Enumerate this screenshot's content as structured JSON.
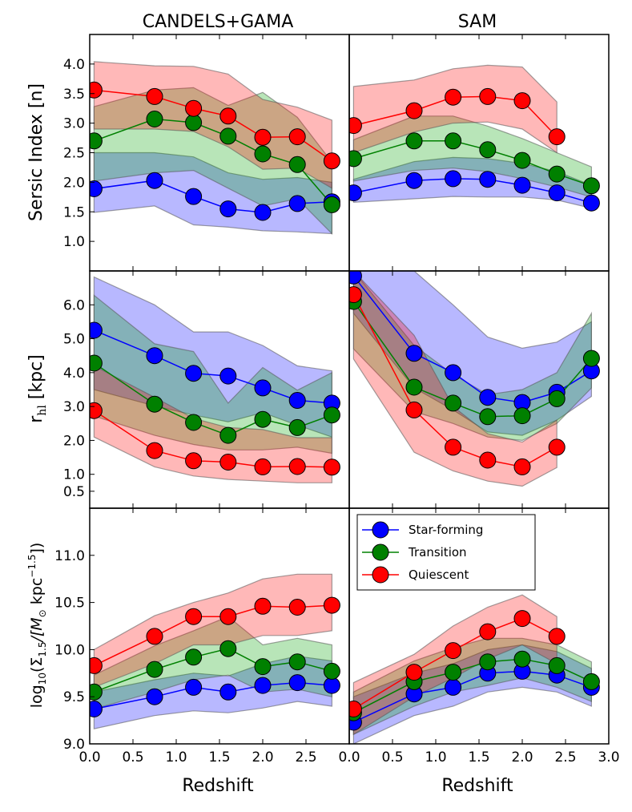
{
  "columns": [
    "CANDELS+GAMA",
    "SAM"
  ],
  "xlabel": "Redshift",
  "ylabels": {
    "sersic": "Sersic Index [n]",
    "rhl_main": "r",
    "rhl_sub": "hl",
    "rhl_unit": " [kpc]",
    "sigma_pre": "log",
    "sigma_sub": "10",
    "sigma_mid": "(Σ",
    "sigma_sub2": "1.5",
    "sigma_mid2": "/[M",
    "sigma_sub3": "⊙",
    "sigma_mid3": " kpc",
    "sigma_sup": "−1.5",
    "sigma_end": "])"
  },
  "legend": {
    "sf": "Star-forming",
    "tr": "Transition",
    "q": "Quiescent"
  },
  "colors": {
    "sf": "#0000ff",
    "tr": "#008000",
    "q": "#ff0000",
    "sf_fill": "#0000ff",
    "tr_fill": "#00a000",
    "q_fill": "#ff0000"
  },
  "chart_data": [
    {
      "type": "line",
      "row": "sersic",
      "column": "CANDELS+GAMA",
      "xlim": [
        0,
        3.0
      ],
      "ylim": [
        0.5,
        4.5
      ],
      "yticks": [
        "1.0",
        "1.5",
        "2.0",
        "2.5",
        "3.0",
        "3.5",
        "4.0"
      ],
      "series": [
        {
          "name": "Star-forming",
          "key": "sf",
          "x": [
            0.05,
            0.75,
            1.2,
            1.6,
            2.0,
            2.4,
            2.8
          ],
          "y": [
            1.89,
            2.03,
            1.76,
            1.55,
            1.49,
            1.64,
            1.67
          ],
          "lo": [
            1.49,
            1.6,
            1.28,
            1.24,
            1.18,
            1.16,
            1.13
          ],
          "hi": [
            2.5,
            2.5,
            2.43,
            2.16,
            2.05,
            2.08,
            2.0
          ]
        },
        {
          "name": "Transition",
          "key": "tr",
          "x": [
            0.05,
            0.75,
            1.2,
            1.6,
            2.0,
            2.4,
            2.8
          ],
          "y": [
            2.7,
            3.07,
            3.01,
            2.78,
            2.48,
            2.3,
            1.62
          ],
          "lo": [
            2.02,
            2.16,
            2.2,
            1.9,
            1.6,
            1.72,
            1.13
          ],
          "hi": [
            3.28,
            3.56,
            3.6,
            3.3,
            3.52,
            3.1,
            2.34
          ]
        },
        {
          "name": "Quiescent",
          "key": "q",
          "x": [
            0.05,
            0.75,
            1.2,
            1.6,
            2.0,
            2.4,
            2.8
          ],
          "y": [
            3.56,
            3.45,
            3.25,
            3.12,
            2.76,
            2.77,
            2.36
          ],
          "lo": [
            2.9,
            2.9,
            2.86,
            2.6,
            2.22,
            2.24,
            1.9
          ],
          "hi": [
            4.04,
            3.97,
            3.96,
            3.83,
            3.4,
            3.27,
            3.05
          ]
        }
      ]
    },
    {
      "type": "line",
      "row": "sersic",
      "column": "SAM",
      "xlim": [
        0,
        3.0
      ],
      "ylim": [
        0.5,
        4.5
      ],
      "series": [
        {
          "name": "Star-forming",
          "key": "sf",
          "x": [
            0.05,
            0.75,
            1.2,
            1.6,
            2.0,
            2.4,
            2.8
          ],
          "y": [
            1.82,
            2.03,
            2.06,
            2.05,
            1.95,
            1.82,
            1.65
          ],
          "lo": [
            1.66,
            1.72,
            1.76,
            1.75,
            1.75,
            1.7,
            1.56
          ],
          "hi": [
            2.05,
            2.35,
            2.42,
            2.4,
            2.32,
            2.18,
            1.95
          ]
        },
        {
          "name": "Transition",
          "key": "tr",
          "x": [
            0.05,
            0.75,
            1.2,
            1.6,
            2.0,
            2.4,
            2.8
          ],
          "y": [
            2.4,
            2.7,
            2.7,
            2.55,
            2.37,
            2.14,
            1.94
          ],
          "lo": [
            2.02,
            2.2,
            2.24,
            2.18,
            2.06,
            1.92,
            1.75
          ],
          "hi": [
            2.72,
            3.12,
            3.12,
            2.95,
            2.74,
            2.5,
            2.26
          ]
        },
        {
          "name": "Quiescent",
          "key": "q",
          "x": [
            0.05,
            0.75,
            1.2,
            1.6,
            2.0,
            2.4
          ],
          "y": [
            2.96,
            3.21,
            3.44,
            3.45,
            3.38,
            2.77
          ],
          "lo": [
            2.5,
            2.85,
            3.0,
            3.02,
            2.9,
            2.5
          ],
          "hi": [
            3.62,
            3.73,
            3.92,
            3.98,
            3.95,
            3.36
          ]
        }
      ]
    },
    {
      "type": "line",
      "row": "rhl",
      "column": "CANDELS+GAMA",
      "xlim": [
        0,
        3.0
      ],
      "ylim": [
        0.0,
        7.0
      ],
      "yticks": [
        "0.5",
        "1.0",
        "2.0",
        "3.0",
        "4.0",
        "5.0",
        "6.0"
      ],
      "series": [
        {
          "name": "Star-forming",
          "key": "sf",
          "x": [
            0.05,
            0.75,
            1.2,
            1.6,
            2.0,
            2.4,
            2.8
          ],
          "y": [
            5.25,
            4.5,
            3.98,
            3.9,
            3.55,
            3.18,
            3.1
          ],
          "lo": [
            3.5,
            3.02,
            2.75,
            2.55,
            2.82,
            2.45,
            2.1
          ],
          "hi": [
            6.82,
            6.0,
            5.2,
            5.2,
            4.8,
            4.2,
            4.05
          ]
        },
        {
          "name": "Transition",
          "key": "tr",
          "x": [
            0.05,
            0.75,
            1.2,
            1.6,
            2.0,
            2.4,
            2.8
          ],
          "y": [
            4.28,
            3.07,
            2.53,
            2.15,
            2.62,
            2.38,
            2.75
          ],
          "lo": [
            2.72,
            2.15,
            1.88,
            1.72,
            1.72,
            1.8,
            1.62
          ],
          "hi": [
            6.28,
            4.85,
            4.62,
            3.1,
            4.15,
            3.48,
            4.0
          ]
        },
        {
          "name": "Quiescent",
          "key": "q",
          "x": [
            0.05,
            0.75,
            1.2,
            1.6,
            2.0,
            2.4,
            2.8
          ],
          "y": [
            2.88,
            1.7,
            1.4,
            1.36,
            1.22,
            1.23,
            1.21
          ],
          "lo": [
            2.1,
            1.22,
            0.95,
            0.85,
            0.8,
            0.75,
            0.75
          ],
          "hi": [
            4.2,
            3.27,
            2.65,
            2.38,
            2.32,
            2.08,
            2.08
          ]
        }
      ]
    },
    {
      "type": "line",
      "row": "rhl",
      "column": "SAM",
      "xlim": [
        0,
        3.0
      ],
      "ylim": [
        0.0,
        7.0
      ],
      "series": [
        {
          "name": "Star-forming",
          "key": "sf",
          "x": [
            0.05,
            0.75,
            1.2,
            1.6,
            2.0,
            2.4,
            2.8
          ],
          "y": [
            6.85,
            4.57,
            4.0,
            3.27,
            3.12,
            3.42,
            4.05
          ],
          "lo": [
            5.75,
            3.55,
            2.9,
            2.25,
            2.15,
            2.6,
            3.3
          ],
          "hi": [
            7.0,
            7.0,
            6.0,
            5.05,
            4.72,
            4.9,
            5.5
          ]
        },
        {
          "name": "Transition",
          "key": "tr",
          "x": [
            0.05,
            0.75,
            1.2,
            1.6,
            2.0,
            2.4,
            2.8
          ],
          "y": [
            6.1,
            3.57,
            3.1,
            2.7,
            2.73,
            3.23,
            4.42
          ],
          "lo": [
            4.7,
            2.85,
            2.5,
            2.1,
            2.0,
            2.5,
            3.55
          ],
          "hi": [
            7.0,
            4.8,
            3.95,
            3.35,
            3.5,
            4.0,
            5.75
          ]
        },
        {
          "name": "Quiescent",
          "key": "q",
          "x": [
            0.05,
            0.75,
            1.2,
            1.6,
            2.0,
            2.4
          ],
          "y": [
            6.3,
            2.9,
            1.8,
            1.42,
            1.22,
            1.8
          ],
          "lo": [
            4.4,
            1.65,
            1.1,
            0.8,
            0.65,
            1.2
          ],
          "hi": [
            7.0,
            5.1,
            3.0,
            2.2,
            1.95,
            2.6
          ]
        }
      ]
    },
    {
      "type": "line",
      "row": "sigma",
      "column": "CANDELS+GAMA",
      "xlim": [
        0,
        3.0
      ],
      "ylim": [
        9.0,
        11.5
      ],
      "yticks": [
        "9.0",
        "9.5",
        "10.0",
        "10.5",
        "11.0"
      ],
      "xticks": [
        "0.0",
        "0.5",
        "1.0",
        "1.5",
        "2.0",
        "2.5"
      ],
      "series": [
        {
          "name": "Star-forming",
          "key": "sf",
          "x": [
            0.05,
            0.75,
            1.2,
            1.6,
            2.0,
            2.4,
            2.8
          ],
          "y": [
            9.37,
            9.5,
            9.6,
            9.55,
            9.62,
            9.65,
            9.62
          ],
          "lo": [
            9.16,
            9.3,
            9.35,
            9.33,
            9.38,
            9.45,
            9.4
          ],
          "hi": [
            9.55,
            9.68,
            9.75,
            9.72,
            9.85,
            9.93,
            9.88
          ]
        },
        {
          "name": "Transition",
          "key": "tr",
          "x": [
            0.05,
            0.75,
            1.2,
            1.6,
            2.0,
            2.4,
            2.8
          ],
          "y": [
            9.55,
            9.79,
            9.92,
            10.01,
            9.82,
            9.87,
            9.77
          ],
          "lo": [
            9.37,
            9.55,
            9.68,
            9.73,
            9.55,
            9.58,
            9.5
          ],
          "hi": [
            9.73,
            10.04,
            10.2,
            10.35,
            10.05,
            10.12,
            10.05
          ]
        },
        {
          "name": "Quiescent",
          "key": "q",
          "x": [
            0.05,
            0.75,
            1.2,
            1.6,
            2.0,
            2.4,
            2.8
          ],
          "y": [
            9.83,
            10.14,
            10.35,
            10.35,
            10.46,
            10.45,
            10.47
          ],
          "lo": [
            9.6,
            9.85,
            10.05,
            10.05,
            10.15,
            10.15,
            10.2
          ],
          "hi": [
            10.0,
            10.36,
            10.5,
            10.6,
            10.75,
            10.8,
            10.8
          ]
        }
      ]
    },
    {
      "type": "line",
      "row": "sigma",
      "column": "SAM",
      "xlim": [
        0,
        3.0
      ],
      "ylim": [
        9.0,
        11.5
      ],
      "xticks": [
        "0.0",
        "0.5",
        "1.0",
        "1.5",
        "2.0",
        "2.5",
        "3.0"
      ],
      "series": [
        {
          "name": "Star-forming",
          "key": "sf",
          "x": [
            0.05,
            0.75,
            1.2,
            1.6,
            2.0,
            2.4,
            2.8
          ],
          "y": [
            9.23,
            9.53,
            9.6,
            9.75,
            9.77,
            9.73,
            9.6
          ],
          "lo": [
            9.0,
            9.3,
            9.4,
            9.55,
            9.6,
            9.55,
            9.4
          ],
          "hi": [
            9.5,
            9.75,
            9.85,
            10.0,
            10.05,
            9.98,
            9.8
          ]
        },
        {
          "name": "Transition",
          "key": "tr",
          "x": [
            0.05,
            0.75,
            1.2,
            1.6,
            2.0,
            2.4,
            2.8
          ],
          "y": [
            9.33,
            9.66,
            9.76,
            9.87,
            9.9,
            9.83,
            9.66
          ],
          "lo": [
            9.1,
            9.4,
            9.55,
            9.62,
            9.7,
            9.6,
            9.45
          ],
          "hi": [
            9.55,
            9.88,
            10.02,
            10.12,
            10.12,
            10.05,
            9.87
          ]
        },
        {
          "name": "Quiescent",
          "key": "q",
          "x": [
            0.05,
            0.75,
            1.2,
            1.6,
            2.0,
            2.4
          ],
          "y": [
            9.37,
            9.76,
            9.99,
            10.19,
            10.33,
            10.14
          ],
          "lo": [
            9.1,
            9.5,
            9.7,
            9.9,
            10.05,
            9.85
          ],
          "hi": [
            9.65,
            9.95,
            10.25,
            10.45,
            10.58,
            10.35
          ]
        }
      ]
    }
  ]
}
